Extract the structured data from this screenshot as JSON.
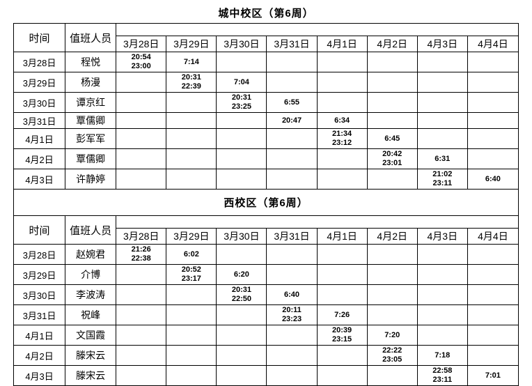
{
  "colors": {
    "background": "#ffffff",
    "border": "#000000",
    "text": "#000000"
  },
  "campus_tables": [
    {
      "title": "城中校区（第6周）",
      "columns": {
        "time": "时间",
        "staff": "值班人员"
      },
      "dates": [
        "3月28日",
        "3月29日",
        "3月30日",
        "3月31日",
        "4月1日",
        "4月2日",
        "4月3日",
        "4月4日"
      ],
      "rows": [
        {
          "date": "3月28日",
          "name": "程悦",
          "times": [
            "20:54\n23:00",
            "7:14",
            "",
            "",
            "",
            "",
            "",
            ""
          ]
        },
        {
          "date": "3月29日",
          "name": "杨漫",
          "times": [
            "",
            "20:31\n22:39",
            "7:04",
            "",
            "",
            "",
            "",
            ""
          ]
        },
        {
          "date": "3月30日",
          "name": "谭京红",
          "times": [
            "",
            "",
            "20:31\n23:25",
            "6:55",
            "",
            "",
            "",
            ""
          ]
        },
        {
          "date": "3月31日",
          "name": "覃儒卿",
          "times": [
            "",
            "",
            "",
            "20:47",
            "6:34",
            "",
            "",
            ""
          ]
        },
        {
          "date": "4月1日",
          "name": "彭军军",
          "times": [
            "",
            "",
            "",
            "",
            "21:34\n23:12",
            "6:45",
            "",
            ""
          ]
        },
        {
          "date": "4月2日",
          "name": "覃儒卿",
          "times": [
            "",
            "",
            "",
            "",
            "",
            "20:42\n23:01",
            "6:31",
            ""
          ]
        },
        {
          "date": "4月3日",
          "name": "许静婷",
          "times": [
            "",
            "",
            "",
            "",
            "",
            "",
            "21:02\n23:11",
            "6:40"
          ]
        }
      ]
    },
    {
      "title": "西校区（第6周）",
      "columns": {
        "time": "时间",
        "staff": "值班人员"
      },
      "dates": [
        "3月28日",
        "3月29日",
        "3月30日",
        "3月31日",
        "4月1日",
        "4月2日",
        "4月3日",
        "4月4日"
      ],
      "rows": [
        {
          "date": "3月28日",
          "name": "赵婉君",
          "times": [
            "21:26\n22:38",
            "6:02",
            "",
            "",
            "",
            "",
            "",
            ""
          ]
        },
        {
          "date": "3月29日",
          "name": "介博",
          "times": [
            "",
            "20:52\n23:17",
            "6:20",
            "",
            "",
            "",
            "",
            ""
          ]
        },
        {
          "date": "3月30日",
          "name": "李波涛",
          "times": [
            "",
            "",
            "20:31\n22:50",
            "6:40",
            "",
            "",
            "",
            ""
          ]
        },
        {
          "date": "3月31日",
          "name": "祝峰",
          "times": [
            "",
            "",
            "",
            "20:11\n23:23",
            "7:26",
            "",
            "",
            ""
          ]
        },
        {
          "date": "4月1日",
          "name": "文国霞",
          "times": [
            "",
            "",
            "",
            "",
            "20:39\n23:15",
            "7:20",
            "",
            ""
          ]
        },
        {
          "date": "4月2日",
          "name": "滕宋云",
          "times": [
            "",
            "",
            "",
            "",
            "",
            "22:22\n23:05",
            "7:18",
            ""
          ]
        },
        {
          "date": "4月3日",
          "name": "滕宋云",
          "times": [
            "",
            "",
            "",
            "",
            "",
            "",
            "22:58\n23:11",
            "7:01"
          ]
        }
      ]
    }
  ]
}
